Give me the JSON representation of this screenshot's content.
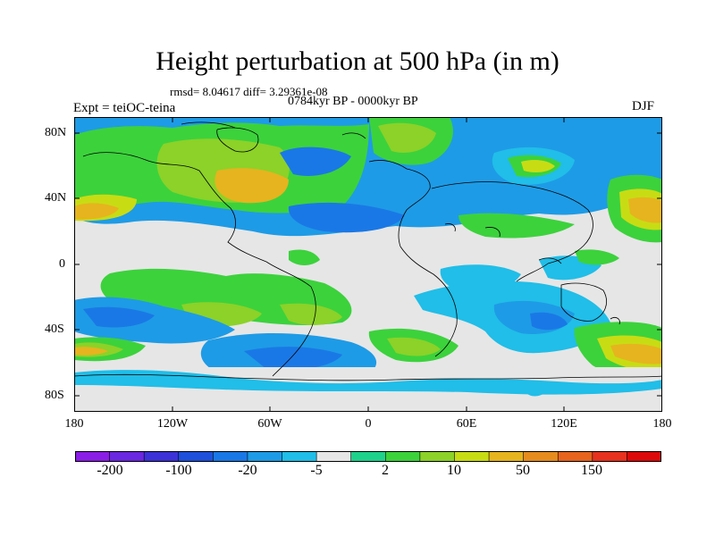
{
  "header": {
    "title": "Height perturbation at 500 hPa (in m)",
    "stats": "rmsd= 8.04617 diff= 3.29361e-08",
    "experiment": "Expt = teiOC-teina",
    "period": "0784kyr BP - 0000kyr BP",
    "season": "DJF"
  },
  "axes": {
    "lat_labels": [
      "80N",
      "40N",
      "0",
      "40S",
      "80S"
    ],
    "lon_labels": [
      "180",
      "120W",
      "60W",
      "0",
      "60E",
      "120E",
      "180"
    ]
  },
  "colorbar": {
    "labels": [
      "-200",
      "-100",
      "-20",
      "-5",
      "2",
      "10",
      "50",
      "150"
    ],
    "colors": [
      "#8a1ee6",
      "#6a28e0",
      "#3c32d8",
      "#1e50dc",
      "#1a78e6",
      "#1e9be6",
      "#20bee8",
      "#e6e6e6",
      "#1ed28c",
      "#3cd23c",
      "#8cd228",
      "#c8dc14",
      "#e6b41e",
      "#e68c1e",
      "#e6641e",
      "#e6321e",
      "#dc0a0a"
    ]
  },
  "map_colors": {
    "neutral": "#e6e6e6",
    "light_blue": "#20bee8",
    "blue": "#1e9be6",
    "dark_blue": "#1a78e6",
    "green": "#1ed28c",
    "yellow_green": "#8cd228",
    "yellow": "#c8dc14",
    "orange": "#e6b41e"
  }
}
